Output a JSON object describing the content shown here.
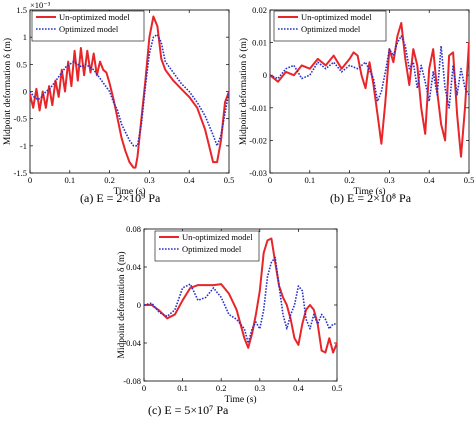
{
  "colors": {
    "unoptimized": "#e8262a",
    "optimized": "#2832c8"
  },
  "legend": {
    "unoptimized": "Un-optimized model",
    "optimized": "Optimized model"
  },
  "chart_data": [
    {
      "id": "a",
      "type": "line",
      "caption": "(a)  E = 2×10⁹ Pa",
      "xlabel": "Time (s)",
      "ylabel": "Midpoint deformation δ (m)",
      "exponent_label": "×10⁻³",
      "xlim": [
        0,
        0.5
      ],
      "ylim": [
        -1.5,
        1.5
      ],
      "xticks": [
        0,
        0.1,
        0.2,
        0.3,
        0.4,
        0.5
      ],
      "xtick_labels": [
        "0",
        "0.1",
        "0.2",
        "0.3",
        "0.4",
        "0.5"
      ],
      "yticks": [
        -1.5,
        -1,
        -0.5,
        0,
        0.5,
        1,
        1.5
      ],
      "ytick_labels": [
        "-1.5",
        "-1",
        "-0.5",
        "0",
        "0.5",
        "1",
        "1.5"
      ],
      "grid": false,
      "legend_position": "top-left",
      "series": [
        {
          "name": "Un-optimized model",
          "style": "solid",
          "x": [
            0,
            0.008,
            0.016,
            0.024,
            0.032,
            0.04,
            0.048,
            0.056,
            0.064,
            0.072,
            0.08,
            0.088,
            0.096,
            0.104,
            0.112,
            0.12,
            0.128,
            0.136,
            0.144,
            0.152,
            0.16,
            0.168,
            0.176,
            0.184,
            0.192,
            0.2,
            0.21,
            0.22,
            0.23,
            0.24,
            0.25,
            0.26,
            0.265,
            0.27,
            0.28,
            0.29,
            0.3,
            0.31,
            0.32,
            0.33,
            0.34,
            0.36,
            0.38,
            0.4,
            0.42,
            0.44,
            0.45,
            0.46,
            0.47,
            0.48,
            0.49,
            0.5
          ],
          "y": [
            -0.05,
            -0.3,
            0.05,
            -0.35,
            0.0,
            -0.3,
            0.1,
            -0.25,
            0.2,
            -0.1,
            0.4,
            0.0,
            0.55,
            0.1,
            0.75,
            0.2,
            0.8,
            0.3,
            0.75,
            0.35,
            0.7,
            0.3,
            0.55,
            0.4,
            0.35,
            0.15,
            -0.15,
            -0.5,
            -0.85,
            -1.1,
            -1.3,
            -1.4,
            -1.4,
            -1.2,
            -0.5,
            0.2,
            1.0,
            1.38,
            1.2,
            0.6,
            0.4,
            0.2,
            0.05,
            -0.1,
            -0.3,
            -0.7,
            -1.0,
            -1.3,
            -1.3,
            -0.9,
            -0.2,
            0.0
          ]
        },
        {
          "name": "Optimized model",
          "style": "dotted",
          "x": [
            0,
            0.01,
            0.02,
            0.03,
            0.04,
            0.05,
            0.06,
            0.07,
            0.08,
            0.09,
            0.1,
            0.11,
            0.12,
            0.13,
            0.14,
            0.15,
            0.16,
            0.17,
            0.18,
            0.19,
            0.2,
            0.21,
            0.22,
            0.23,
            0.24,
            0.25,
            0.26,
            0.27,
            0.28,
            0.29,
            0.3,
            0.31,
            0.32,
            0.33,
            0.34,
            0.36,
            0.38,
            0.4,
            0.42,
            0.44,
            0.46,
            0.47,
            0.48,
            0.49,
            0.5
          ],
          "y": [
            0.0,
            -0.1,
            -0.15,
            -0.1,
            0.0,
            0.05,
            0.15,
            0.25,
            0.35,
            0.45,
            0.5,
            0.55,
            0.5,
            0.45,
            0.5,
            0.45,
            0.4,
            0.3,
            0.2,
            0.1,
            0.0,
            -0.2,
            -0.35,
            -0.6,
            -0.75,
            -0.9,
            -1.0,
            -1.0,
            -0.6,
            0.1,
            0.7,
            1.0,
            1.05,
            0.9,
            0.55,
            0.35,
            0.15,
            0.0,
            -0.2,
            -0.45,
            -0.8,
            -1.0,
            -0.8,
            -0.4,
            0.0
          ]
        }
      ]
    },
    {
      "id": "b",
      "type": "line",
      "caption": "(b)  E = 2×10⁸ Pa",
      "xlabel": "Time (s)",
      "ylabel": "Midpoint deformation δ (m)",
      "xlim": [
        0,
        0.5
      ],
      "ylim": [
        -0.03,
        0.02
      ],
      "xticks": [
        0,
        0.1,
        0.2,
        0.3,
        0.4,
        0.5
      ],
      "xtick_labels": [
        "0",
        "0.1",
        "0.2",
        "0.3",
        "0.4",
        "0.5"
      ],
      "yticks": [
        -0.03,
        -0.02,
        -0.01,
        0,
        0.01,
        0.02
      ],
      "ytick_labels": [
        "-0.03",
        "-0.02",
        "-0.01",
        "0",
        "0.01",
        "0.02"
      ],
      "grid": false,
      "legend_position": "top-left",
      "series": [
        {
          "name": "Un-optimized model",
          "style": "solid",
          "x": [
            0,
            0.02,
            0.04,
            0.06,
            0.08,
            0.1,
            0.12,
            0.14,
            0.16,
            0.18,
            0.2,
            0.21,
            0.22,
            0.23,
            0.24,
            0.25,
            0.26,
            0.27,
            0.28,
            0.29,
            0.3,
            0.31,
            0.32,
            0.33,
            0.34,
            0.35,
            0.36,
            0.37,
            0.38,
            0.39,
            0.4,
            0.41,
            0.42,
            0.43,
            0.44,
            0.45,
            0.46,
            0.47,
            0.48,
            0.49,
            0.5
          ],
          "y": [
            0.0,
            -0.002,
            0.001,
            0.0,
            0.003,
            0.002,
            0.005,
            0.003,
            0.006,
            0.002,
            0.005,
            0.007,
            0.006,
            0.0,
            -0.004,
            0.004,
            -0.003,
            -0.012,
            -0.021,
            -0.008,
            0.008,
            0.004,
            0.012,
            0.016,
            0.005,
            -0.003,
            0.008,
            0.003,
            -0.01,
            -0.018,
            0.002,
            0.008,
            -0.005,
            -0.015,
            -0.02,
            0.006,
            0.007,
            -0.012,
            -0.025,
            -0.01,
            0.01
          ]
        },
        {
          "name": "Optimized model",
          "style": "dotted",
          "x": [
            0,
            0.02,
            0.04,
            0.06,
            0.08,
            0.1,
            0.12,
            0.14,
            0.16,
            0.18,
            0.2,
            0.22,
            0.24,
            0.26,
            0.27,
            0.28,
            0.29,
            0.3,
            0.31,
            0.32,
            0.33,
            0.34,
            0.35,
            0.36,
            0.37,
            0.38,
            0.39,
            0.4,
            0.41,
            0.42,
            0.43,
            0.44,
            0.45,
            0.46,
            0.47,
            0.48,
            0.49,
            0.5
          ],
          "y": [
            0.0,
            -0.001,
            0.002,
            0.003,
            -0.001,
            0.0,
            0.004,
            0.002,
            0.004,
            0.001,
            0.003,
            0.002,
            0.004,
            -0.001,
            -0.008,
            -0.005,
            0.001,
            0.008,
            0.006,
            0.01,
            0.012,
            0.009,
            0.002,
            0.004,
            -0.004,
            0.003,
            -0.002,
            -0.008,
            0.001,
            -0.006,
            0.009,
            -0.004,
            -0.01,
            0.003,
            -0.006,
            0.002,
            -0.004,
            -0.006
          ]
        }
      ]
    },
    {
      "id": "c",
      "type": "line",
      "caption": "(c)  E = 5×10⁷ Pa",
      "xlabel": "Time (s)",
      "ylabel": "Midpoint deformation δ (m)",
      "xlim": [
        0,
        0.5
      ],
      "ylim": [
        -0.08,
        0.08
      ],
      "xticks": [
        0,
        0.1,
        0.2,
        0.3,
        0.4,
        0.5
      ],
      "xtick_labels": [
        "0",
        "0.1",
        "0.2",
        "0.3",
        "0.4",
        "0.5"
      ],
      "yticks": [
        -0.08,
        -0.04,
        0,
        0.04,
        0.08
      ],
      "ytick_labels": [
        "-0.08",
        "-0.04",
        "0",
        "0.04",
        "0.08"
      ],
      "grid": false,
      "legend_position": "top-right",
      "series": [
        {
          "name": "Un-optimized model",
          "style": "solid",
          "x": [
            0,
            0.02,
            0.04,
            0.06,
            0.08,
            0.1,
            0.12,
            0.14,
            0.16,
            0.18,
            0.2,
            0.22,
            0.24,
            0.26,
            0.27,
            0.28,
            0.29,
            0.3,
            0.31,
            0.32,
            0.33,
            0.34,
            0.35,
            0.36,
            0.37,
            0.38,
            0.39,
            0.4,
            0.41,
            0.42,
            0.43,
            0.44,
            0.45,
            0.46,
            0.47,
            0.48,
            0.49,
            0.5
          ],
          "y": [
            0.0,
            0.0,
            -0.006,
            -0.014,
            -0.01,
            0.005,
            0.018,
            0.021,
            0.021,
            0.021,
            0.022,
            0.012,
            -0.005,
            -0.035,
            -0.045,
            -0.03,
            -0.01,
            0.015,
            0.055,
            0.068,
            0.07,
            0.045,
            0.02,
            0.008,
            0.0,
            -0.015,
            -0.035,
            -0.042,
            -0.02,
            -0.005,
            0.0,
            -0.005,
            -0.02,
            -0.048,
            -0.05,
            -0.035,
            -0.05,
            -0.04
          ]
        },
        {
          "name": "Optimized model",
          "style": "dotted",
          "x": [
            0,
            0.02,
            0.04,
            0.06,
            0.08,
            0.1,
            0.12,
            0.14,
            0.16,
            0.18,
            0.2,
            0.22,
            0.24,
            0.26,
            0.27,
            0.28,
            0.29,
            0.3,
            0.31,
            0.32,
            0.33,
            0.34,
            0.35,
            0.36,
            0.37,
            0.38,
            0.39,
            0.4,
            0.41,
            0.42,
            0.43,
            0.44,
            0.45,
            0.46,
            0.47,
            0.48,
            0.49,
            0.5
          ],
          "y": [
            0.0,
            0.002,
            -0.008,
            -0.012,
            -0.005,
            0.018,
            0.022,
            0.005,
            0.008,
            0.018,
            0.008,
            -0.01,
            -0.015,
            -0.025,
            -0.04,
            -0.025,
            -0.018,
            -0.025,
            -0.005,
            0.03,
            0.045,
            0.05,
            0.02,
            -0.01,
            -0.025,
            -0.01,
            0.0,
            0.02,
            0.015,
            -0.015,
            -0.025,
            -0.01,
            -0.02,
            -0.01,
            -0.015,
            -0.025,
            -0.02,
            -0.02
          ]
        }
      ]
    }
  ]
}
